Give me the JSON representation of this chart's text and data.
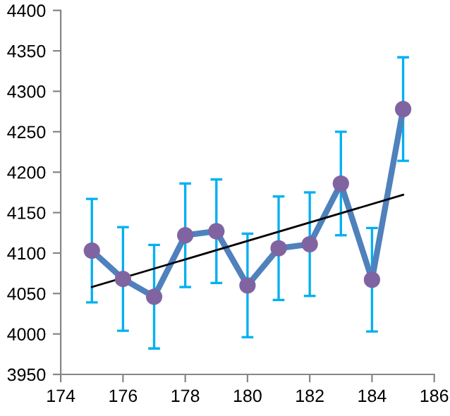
{
  "chart_data": {
    "type": "line",
    "marker": "circle",
    "grid": false,
    "xlim": [
      174,
      186
    ],
    "xticks": [
      174,
      176,
      178,
      180,
      182,
      184,
      186
    ],
    "ylim": [
      3950,
      4400
    ],
    "yticks": [
      3950,
      4000,
      4050,
      4100,
      4150,
      4200,
      4250,
      4300,
      4350,
      4400
    ],
    "series": [
      {
        "color": "#4f81bd",
        "colors": [
          "#8064a2",
          "#8064a2",
          "#8064a2",
          "#8064a2",
          "#8064a2",
          "#8064a2",
          "#8064a2",
          "#8064a2",
          "#8064a2",
          "#8064a2",
          "#8064a2"
        ],
        "x": [
          175,
          176,
          177,
          178,
          179,
          180,
          181,
          182,
          183,
          184,
          185
        ],
        "values": [
          4103,
          4068,
          4046,
          4122,
          4127,
          4060,
          4106,
          4111,
          4186,
          4067,
          4278
        ],
        "errors": [
          64,
          64,
          64,
          64,
          64,
          64,
          64,
          64,
          64,
          64,
          64
        ]
      },
      {
        "color": "#000000",
        "marker": "none",
        "x": [
          175,
          185
        ],
        "values": [
          4058,
          4172
        ]
      }
    ]
  }
}
